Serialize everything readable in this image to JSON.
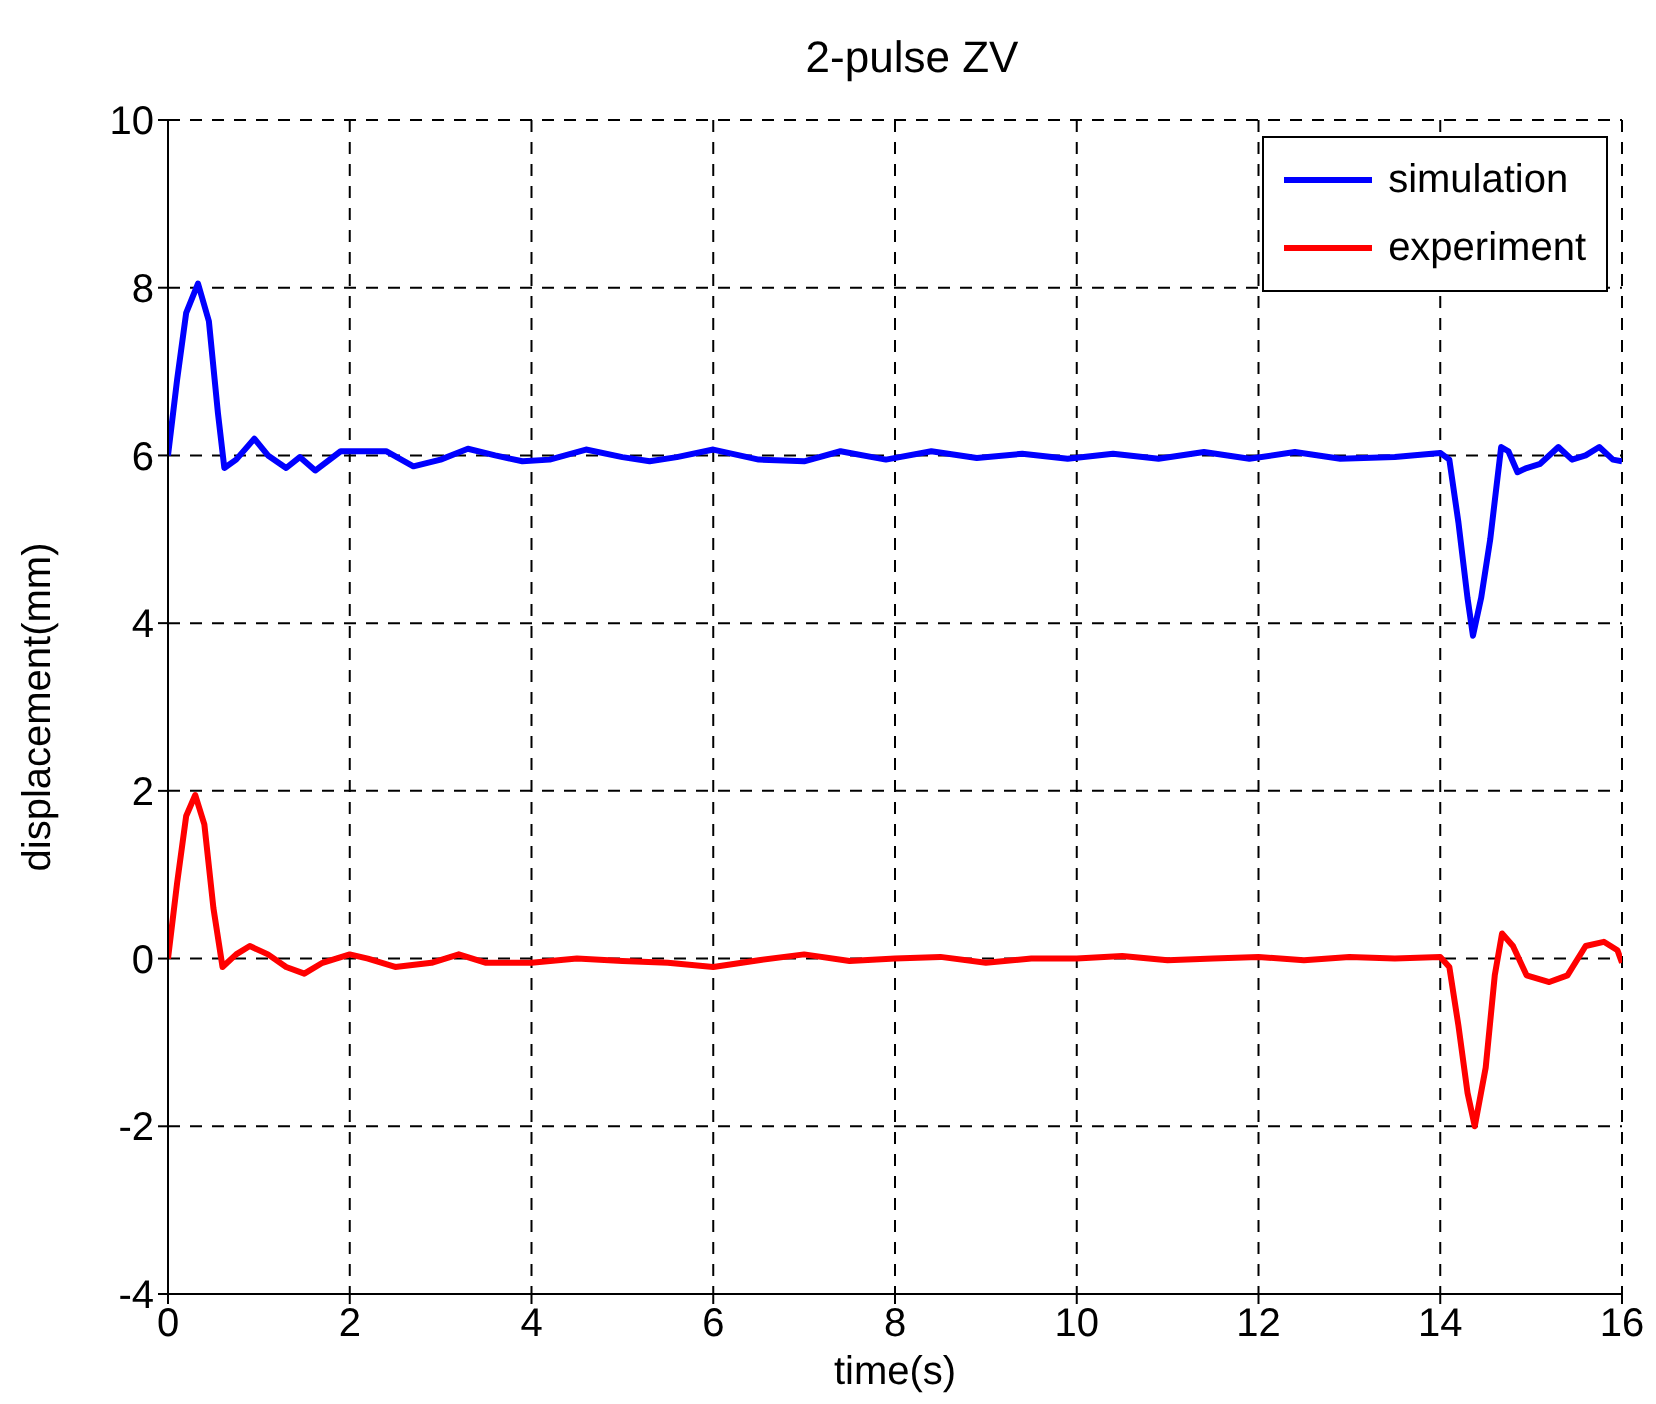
{
  "chart_data": {
    "type": "line",
    "title": "2-pulse ZV",
    "xlabel": "time(s)",
    "ylabel": "displacement(mm)",
    "xlim": [
      0,
      16
    ],
    "xticks": [
      0,
      2,
      4,
      6,
      8,
      10,
      12,
      14,
      16
    ],
    "ylim": [
      -4,
      10
    ],
    "yticks": [
      -4,
      -2,
      0,
      2,
      4,
      6,
      8,
      10
    ],
    "grid": true,
    "legend": "top right",
    "line_style": "solid",
    "marker": "none",
    "series": [
      {
        "name": "simulation",
        "color": "#0000ff",
        "x": [
          0,
          0.1,
          0.2,
          0.33,
          0.45,
          0.55,
          0.62,
          0.75,
          0.95,
          1.1,
          1.3,
          1.45,
          1.62,
          1.9,
          2.2,
          2.4,
          2.7,
          3.0,
          3.3,
          3.6,
          3.9,
          4.2,
          4.6,
          5.0,
          5.3,
          5.6,
          6.0,
          6.5,
          7.0,
          7.4,
          7.9,
          8.4,
          8.9,
          9.4,
          9.9,
          10.4,
          10.9,
          11.4,
          11.9,
          12.4,
          12.9,
          13.5,
          14.0,
          14.1,
          14.2,
          14.3,
          14.36,
          14.45,
          14.55,
          14.67,
          14.75,
          14.85,
          14.95,
          15.1,
          15.3,
          15.45,
          15.6,
          15.75,
          15.9,
          16
        ],
        "values": [
          6.0,
          6.9,
          7.7,
          8.05,
          7.6,
          6.5,
          5.85,
          5.95,
          6.2,
          6.0,
          5.85,
          5.98,
          5.82,
          6.05,
          6.05,
          6.05,
          5.87,
          5.95,
          6.08,
          6.0,
          5.93,
          5.95,
          6.07,
          5.98,
          5.93,
          5.98,
          6.07,
          5.95,
          5.93,
          6.05,
          5.95,
          6.05,
          5.97,
          6.02,
          5.96,
          6.02,
          5.96,
          6.04,
          5.96,
          6.04,
          5.96,
          5.98,
          6.03,
          5.95,
          5.2,
          4.3,
          3.85,
          4.3,
          5.0,
          6.1,
          6.05,
          5.8,
          5.85,
          5.9,
          6.1,
          5.95,
          6.0,
          6.1,
          5.95,
          5.93
        ]
      },
      {
        "name": "experiment",
        "color": "#ff0000",
        "x": [
          0,
          0.1,
          0.2,
          0.3,
          0.4,
          0.5,
          0.6,
          0.75,
          0.9,
          1.1,
          1.3,
          1.5,
          1.7,
          2.0,
          2.2,
          2.5,
          2.9,
          3.2,
          3.5,
          4.0,
          4.5,
          5.0,
          5.5,
          6.0,
          6.5,
          7.0,
          7.5,
          8.0,
          8.5,
          9.0,
          9.5,
          10.0,
          10.5,
          11.0,
          11.5,
          12.0,
          12.5,
          13.0,
          13.5,
          14.0,
          14.1,
          14.2,
          14.3,
          14.38,
          14.5,
          14.6,
          14.68,
          14.8,
          14.95,
          15.2,
          15.4,
          15.6,
          15.8,
          15.95,
          16
        ],
        "values": [
          0,
          0.9,
          1.7,
          1.95,
          1.6,
          0.6,
          -0.1,
          0.05,
          0.15,
          0.05,
          -0.1,
          -0.18,
          -0.05,
          0.05,
          0.0,
          -0.1,
          -0.05,
          0.05,
          -0.05,
          -0.05,
          0.0,
          -0.03,
          -0.05,
          -0.1,
          -0.02,
          0.05,
          -0.03,
          0.0,
          0.02,
          -0.05,
          0.0,
          0.0,
          0.03,
          -0.02,
          0.0,
          0.02,
          -0.02,
          0.02,
          0.0,
          0.02,
          -0.1,
          -0.8,
          -1.6,
          -2.0,
          -1.3,
          -0.2,
          0.3,
          0.15,
          -0.2,
          -0.28,
          -0.2,
          0.15,
          0.2,
          0.1,
          -0.05
        ]
      }
    ]
  }
}
